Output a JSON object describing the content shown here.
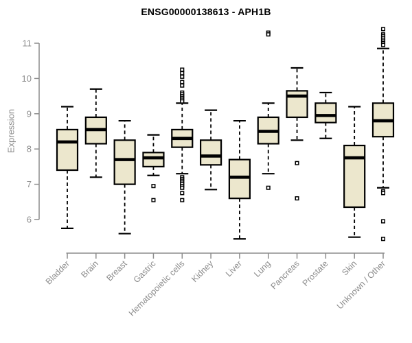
{
  "title": "ENSG00000138613 - APH1B",
  "ylabel": "Expression",
  "chart_data": {
    "type": "boxplot",
    "title": "ENSG00000138613 - APH1B",
    "xlabel": "",
    "ylabel": "Expression",
    "y_axis": {
      "ticks": [
        6,
        7,
        8,
        9,
        10,
        11
      ],
      "min": 5.2,
      "max": 11.5
    },
    "grid": false,
    "categories": [
      "Bladder",
      "Brain",
      "Breast",
      "Gastric",
      "Hematopoietic cells",
      "Kidney",
      "Liver",
      "Lung",
      "Pancreas",
      "Prostate",
      "Skin",
      "Unknown / Other"
    ],
    "series": [
      {
        "name": "Bladder",
        "whisker_low": 5.75,
        "q1": 7.4,
        "median": 8.2,
        "q3": 8.55,
        "whisker_high": 9.2,
        "outliers": []
      },
      {
        "name": "Brain",
        "whisker_low": 7.2,
        "q1": 8.15,
        "median": 8.55,
        "q3": 8.9,
        "whisker_high": 9.7,
        "outliers": []
      },
      {
        "name": "Breast",
        "whisker_low": 5.6,
        "q1": 7.0,
        "median": 7.7,
        "q3": 8.25,
        "whisker_high": 8.8,
        "outliers": []
      },
      {
        "name": "Gastric",
        "whisker_low": 7.25,
        "q1": 7.5,
        "median": 7.75,
        "q3": 7.9,
        "whisker_high": 8.4,
        "outliers": [
          6.95,
          6.55
        ]
      },
      {
        "name": "Hematopoietic cells",
        "whisker_low": 7.3,
        "q1": 8.05,
        "median": 8.3,
        "q3": 8.55,
        "whisker_high": 9.3,
        "outliers": [
          10.25,
          10.15,
          10.05,
          9.9,
          9.8,
          9.6,
          9.55,
          9.5,
          9.45,
          9.4,
          9.35,
          7.2,
          7.15,
          7.1,
          7.05,
          7.0,
          6.95,
          6.9,
          6.75,
          6.55
        ]
      },
      {
        "name": "Kidney",
        "whisker_low": 6.85,
        "q1": 7.55,
        "median": 7.8,
        "q3": 8.25,
        "whisker_high": 9.1,
        "outliers": []
      },
      {
        "name": "Liver",
        "whisker_low": 5.45,
        "q1": 6.6,
        "median": 7.2,
        "q3": 7.7,
        "whisker_high": 8.8,
        "outliers": []
      },
      {
        "name": "Lung",
        "whisker_low": 7.3,
        "q1": 8.15,
        "median": 8.5,
        "q3": 8.9,
        "whisker_high": 9.3,
        "outliers": [
          11.3,
          11.25,
          6.9
        ]
      },
      {
        "name": "Pancreas",
        "whisker_low": 8.25,
        "q1": 8.9,
        "median": 9.5,
        "q3": 9.65,
        "whisker_high": 10.3,
        "outliers": [
          7.6,
          6.6
        ]
      },
      {
        "name": "Prostate",
        "whisker_low": 8.3,
        "q1": 8.75,
        "median": 8.95,
        "q3": 9.3,
        "whisker_high": 9.6,
        "outliers": []
      },
      {
        "name": "Skin",
        "whisker_low": 5.5,
        "q1": 6.35,
        "median": 7.75,
        "q3": 8.1,
        "whisker_high": 9.2,
        "outliers": []
      },
      {
        "name": "Unknown / Other",
        "whisker_low": 6.9,
        "q1": 8.35,
        "median": 8.8,
        "q3": 9.3,
        "whisker_high": 10.85,
        "outliers": [
          11.4,
          11.25,
          11.2,
          11.15,
          11.1,
          11.05,
          11.0,
          10.95,
          6.8,
          6.75,
          5.95,
          5.45
        ]
      }
    ],
    "colors": {
      "box_fill": "#ece7cd",
      "box_border": "#000000",
      "median": "#000000",
      "whisker": "#000000",
      "axis": "#8c8c8c",
      "tick_label": "#8c8c8c",
      "title": "#000000",
      "background": "#ffffff"
    },
    "legend": null
  }
}
